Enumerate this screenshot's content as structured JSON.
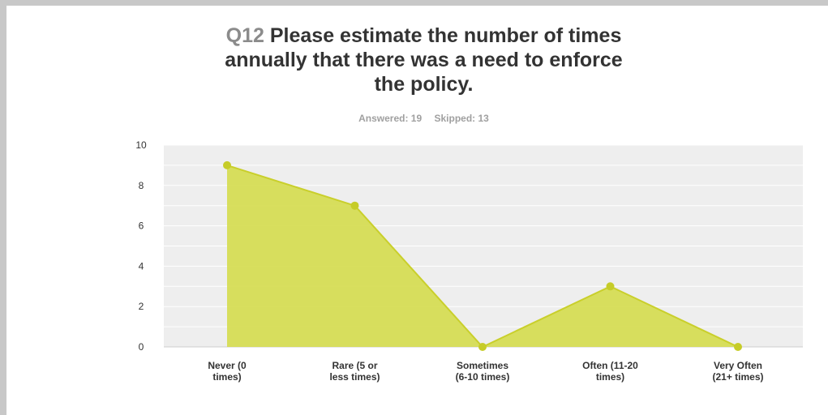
{
  "question": {
    "number": "Q12",
    "title_lines": [
      "Please estimate the number of times",
      "annually that there was a need to enforce",
      "the policy."
    ],
    "answered": "Answered: 19",
    "skipped": "Skipped: 13"
  },
  "colors": {
    "plot_bg": "#eeeeee",
    "grid": "#ffffff",
    "area_fill": "#d4dc4c",
    "line": "#c9cf2b",
    "point": "#c6cc28",
    "page_bg": "#c8c8c8"
  },
  "chart_data": {
    "type": "area",
    "categories": [
      [
        "Never (0",
        "times)"
      ],
      [
        "Rare (5 or",
        "less times)"
      ],
      [
        "Sometimes",
        "(6-10 times)"
      ],
      [
        "Often (11-20",
        "times)"
      ],
      [
        "Very Often",
        "(21+ times)"
      ]
    ],
    "values": [
      9,
      7,
      0,
      3,
      0
    ],
    "ylim": [
      0,
      10
    ],
    "yticks": [
      0,
      2,
      4,
      6,
      8,
      10
    ],
    "grid": true,
    "legend": "none"
  }
}
